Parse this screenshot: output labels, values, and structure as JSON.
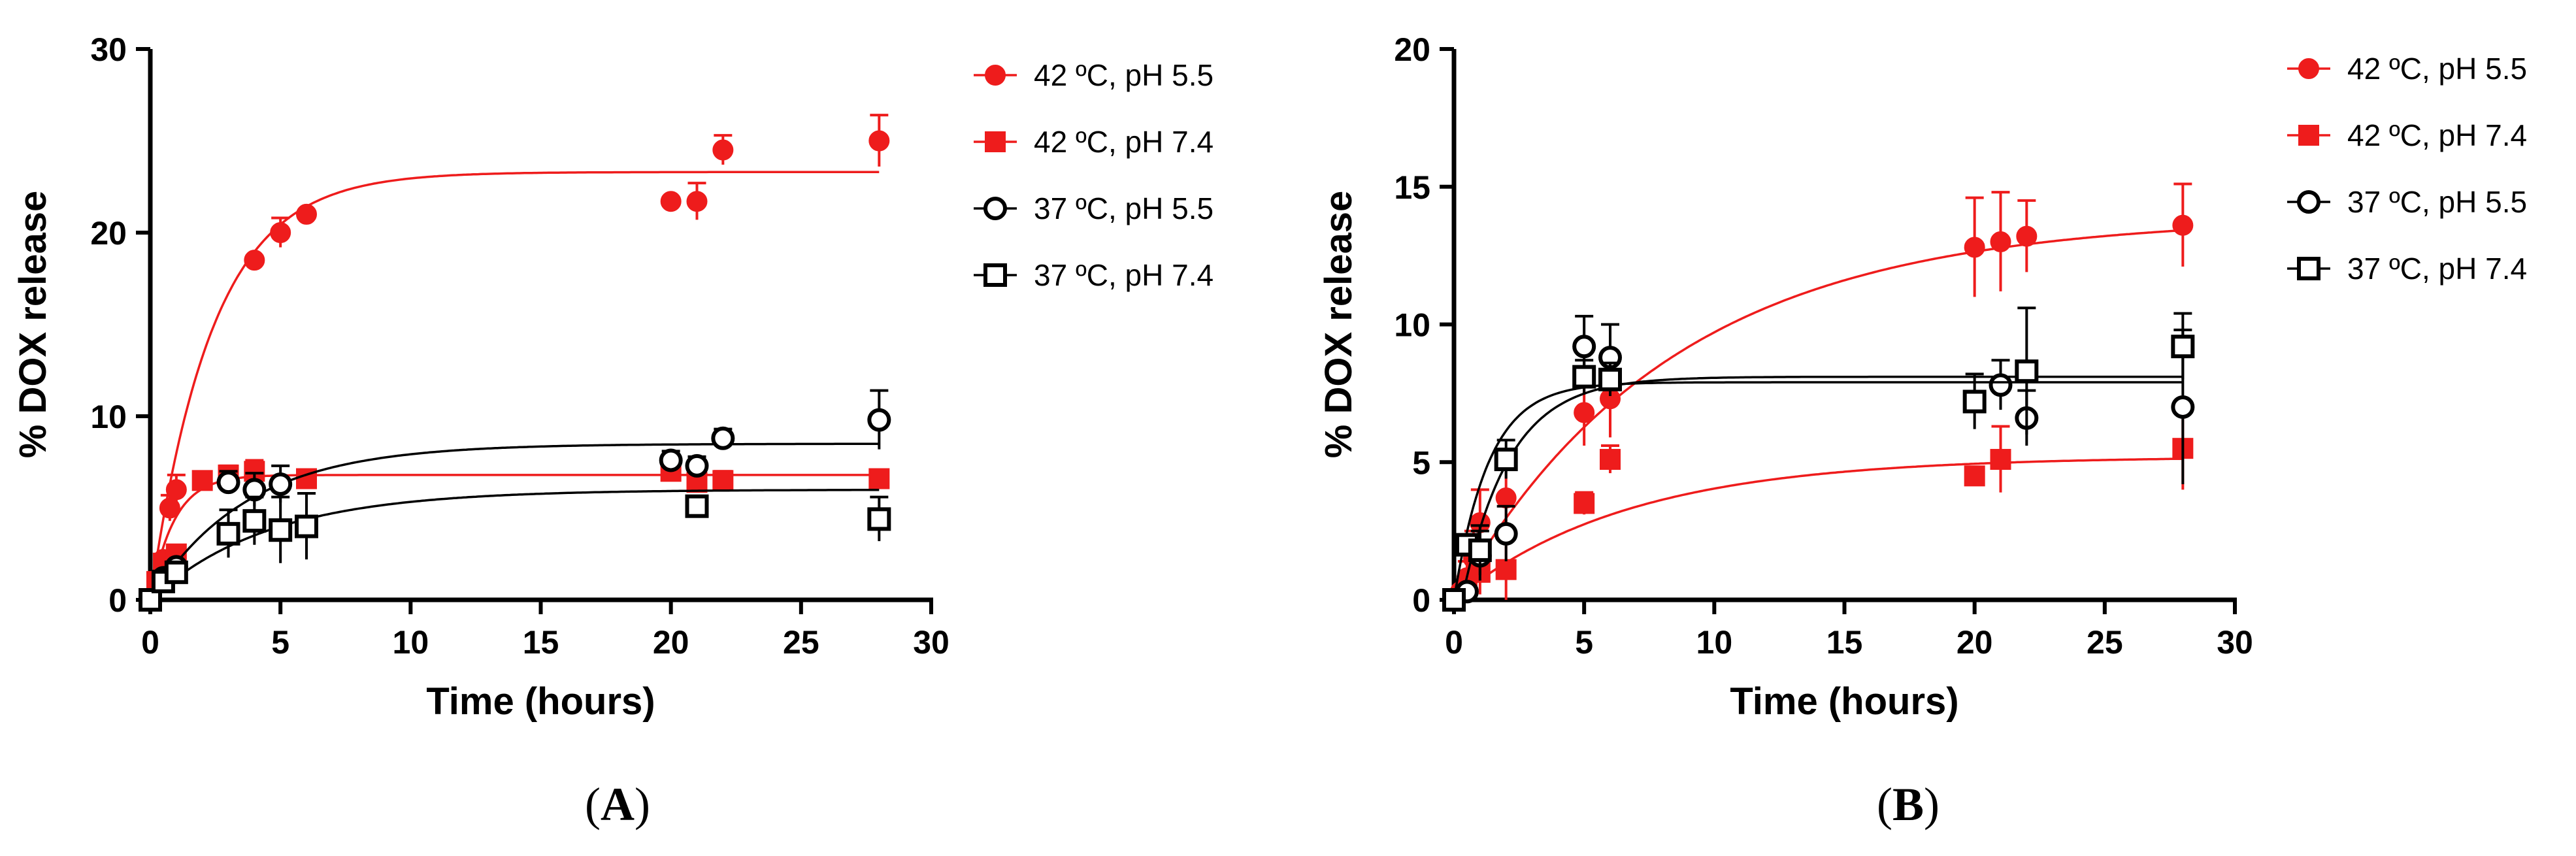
{
  "colors": {
    "red": "#ee1c1c",
    "black": "#000000"
  },
  "chart_data": [
    {
      "type": "scatter",
      "panel": "A",
      "title": "",
      "xlabel": "Time (hours)",
      "ylabel": "% DOX release",
      "xlim": [
        0,
        30
      ],
      "ylim": [
        0,
        30
      ],
      "xticks": [
        "0",
        "5",
        "10",
        "15",
        "20",
        "25",
        "30"
      ],
      "yticks": [
        "0",
        "10",
        "20",
        "30"
      ],
      "xtick_values": [
        0,
        5,
        10,
        15,
        20,
        25,
        30
      ],
      "ytick_values": [
        0,
        10,
        20,
        30
      ],
      "grid": false,
      "legend_position": "right",
      "series": [
        {
          "name": "42 ºC, pH 5.5",
          "marker": "circle",
          "fill": "filled",
          "color": "#ee1c1c",
          "x": [
            0,
            0.25,
            0.5,
            0.75,
            1,
            4,
            5,
            6,
            20,
            21,
            22,
            28
          ],
          "y": [
            0,
            1.0,
            2.2,
            5.0,
            6.0,
            18.5,
            20.0,
            21.0,
            21.7,
            21.7,
            24.5,
            25.0
          ],
          "err": [
            0,
            0,
            0,
            0.7,
            0.8,
            0,
            0.8,
            0,
            0,
            1.0,
            0.8,
            1.4
          ],
          "fit": {
            "plateau": 23.3,
            "k": 0.42,
            "x0": 0
          }
        },
        {
          "name": "42 ºC, pH 7.4",
          "marker": "square",
          "fill": "filled",
          "color": "#ee1c1c",
          "x": [
            0,
            0.25,
            0.5,
            1,
            2,
            3,
            4,
            6,
            20,
            21,
            22,
            28
          ],
          "y": [
            0,
            1.0,
            2.0,
            2.5,
            6.5,
            6.8,
            7.0,
            6.6,
            7.0,
            6.4,
            6.5,
            6.6
          ],
          "err": [
            0,
            0,
            0,
            0,
            0,
            0.5,
            0.6,
            0.4,
            0.4,
            0.5,
            0.5,
            0.3
          ],
          "fit": {
            "plateau": 6.8,
            "k": 1.1,
            "x0": 0
          }
        },
        {
          "name": "37 ºC, pH 5.5",
          "marker": "circle",
          "fill": "open",
          "color": "#000000",
          "x": [
            0,
            0.5,
            1,
            3,
            4,
            5,
            20,
            21,
            22,
            28
          ],
          "y": [
            0,
            1.2,
            1.8,
            6.4,
            6.0,
            6.3,
            7.6,
            7.3,
            8.8,
            9.8
          ],
          "err": [
            0,
            0,
            0,
            0.6,
            0.9,
            1.0,
            0.5,
            0.5,
            0.5,
            1.6
          ],
          "fit": {
            "plateau": 8.5,
            "k": 0.27,
            "x0": 0
          }
        },
        {
          "name": "37 ºC, pH 7.4",
          "marker": "square",
          "fill": "open",
          "color": "#000000",
          "x": [
            0,
            0.5,
            1,
            3,
            4,
            5,
            6,
            21,
            28
          ],
          "y": [
            0,
            1.0,
            1.5,
            3.6,
            4.3,
            3.8,
            4.0,
            5.1,
            4.4
          ],
          "err": [
            0,
            0,
            0,
            1.3,
            1.3,
            1.8,
            1.8,
            0.5,
            1.2
          ],
          "fit": {
            "plateau": 6.0,
            "k": 0.22,
            "x0": 0
          }
        }
      ]
    },
    {
      "type": "scatter",
      "panel": "B",
      "title": "",
      "xlabel": "Time (hours)",
      "ylabel": "% DOX release",
      "xlim": [
        0,
        30
      ],
      "ylim": [
        0,
        20
      ],
      "xticks": [
        "0",
        "5",
        "10",
        "15",
        "20",
        "25",
        "30"
      ],
      "yticks": [
        "0",
        "5",
        "10",
        "15",
        "20"
      ],
      "xtick_values": [
        0,
        5,
        10,
        15,
        20,
        25,
        30
      ],
      "ytick_values": [
        0,
        5,
        10,
        15,
        20
      ],
      "grid": false,
      "legend_position": "right",
      "series": [
        {
          "name": "42 ºC, pH 5.5",
          "marker": "circle",
          "fill": "filled",
          "color": "#ee1c1c",
          "x": [
            0,
            0.25,
            0.5,
            0.75,
            1,
            2,
            5,
            6,
            20,
            21,
            22,
            28
          ],
          "y": [
            0,
            0.3,
            0.8,
            1.5,
            2.8,
            3.7,
            6.8,
            7.3,
            12.8,
            13.0,
            13.2,
            13.6
          ],
          "err": [
            0,
            0,
            0.6,
            1.0,
            1.2,
            1.2,
            1.2,
            1.4,
            1.8,
            1.8,
            1.3,
            1.5
          ],
          "fit": {
            "plateau": 13.9,
            "k": 0.12,
            "x0": 0
          }
        },
        {
          "name": "42 ºC, pH 7.4",
          "marker": "square",
          "fill": "filled",
          "color": "#ee1c1c",
          "x": [
            0,
            0.5,
            1,
            2,
            5,
            6,
            20,
            21,
            28
          ],
          "y": [
            0,
            0.5,
            1.0,
            1.1,
            3.5,
            5.1,
            4.5,
            5.1,
            5.5
          ],
          "err": [
            0,
            0,
            0.8,
            1.3,
            0.4,
            0.5,
            0,
            1.2,
            1.5
          ],
          "fit": {
            "plateau": 5.2,
            "k": 0.15,
            "x0": 0
          }
        },
        {
          "name": "37 ºC, pH 5.5",
          "marker": "circle",
          "fill": "open",
          "color": "#000000",
          "x": [
            0,
            0.5,
            1,
            2,
            5,
            6,
            21,
            22,
            28
          ],
          "y": [
            0,
            0.3,
            1.6,
            2.4,
            9.2,
            8.8,
            7.8,
            6.6,
            7.0
          ],
          "err": [
            0,
            0,
            0.9,
            1.0,
            1.1,
            1.2,
            0.9,
            1.0,
            2.8
          ],
          "fit": {
            "plateau": 8.1,
            "k": 0.55,
            "x0": 0.3
          }
        },
        {
          "name": "37 ºC, pH 7.4",
          "marker": "square",
          "fill": "open",
          "color": "#000000",
          "x": [
            0,
            0.5,
            1,
            2,
            5,
            6,
            20,
            22,
            28
          ],
          "y": [
            0,
            2.0,
            1.8,
            5.1,
            8.1,
            8.0,
            7.2,
            8.3,
            9.2
          ],
          "err": [
            0,
            0,
            0.9,
            0.7,
            0.6,
            0.6,
            1.0,
            2.3,
            1.2
          ],
          "fit": {
            "plateau": 7.9,
            "k": 0.75,
            "x0": 0
          }
        }
      ]
    }
  ],
  "panel_labels": [
    "A",
    "B"
  ]
}
